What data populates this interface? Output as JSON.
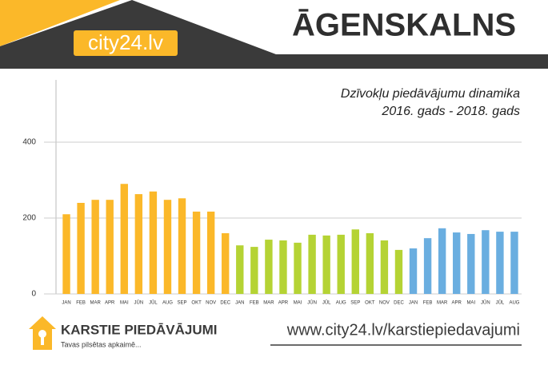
{
  "header": {
    "logo": "city24.lv",
    "title": "ĀGENSKALNS"
  },
  "chart_data": {
    "type": "bar",
    "title": "Dzīvokļu piedāvājumu dinamika",
    "subtitle": "2016. gads - 2018. gads",
    "categories": [
      "JAN",
      "FEB",
      "MAR",
      "APR",
      "MAI",
      "JŪN",
      "JŪL",
      "AUG",
      "SEP",
      "OKT",
      "NOV",
      "DEC",
      "JAN",
      "FEB",
      "MAR",
      "APR",
      "MAI",
      "JŪN",
      "JŪL",
      "AUG",
      "SEP",
      "OKT",
      "NOV",
      "DEC",
      "JAN",
      "FEB",
      "MAR",
      "APR",
      "MAI",
      "JŪN",
      "JŪL",
      "AUG"
    ],
    "values": [
      210,
      240,
      248,
      248,
      290,
      263,
      270,
      248,
      252,
      217,
      217,
      160,
      128,
      124,
      143,
      141,
      135,
      156,
      154,
      156,
      170,
      160,
      141,
      116,
      120,
      147,
      173,
      162,
      158,
      168,
      164,
      164
    ],
    "colors": [
      "#fbb829",
      "#fbb829",
      "#fbb829",
      "#fbb829",
      "#fbb829",
      "#fbb829",
      "#fbb829",
      "#fbb829",
      "#fbb829",
      "#fbb829",
      "#fbb829",
      "#fbb829",
      "#b5d334",
      "#b5d334",
      "#b5d334",
      "#b5d334",
      "#b5d334",
      "#b5d334",
      "#b5d334",
      "#b5d334",
      "#b5d334",
      "#b5d334",
      "#b5d334",
      "#b5d334",
      "#6aaee0",
      "#6aaee0",
      "#6aaee0",
      "#6aaee0",
      "#6aaee0",
      "#6aaee0",
      "#6aaee0",
      "#6aaee0"
    ],
    "ylim": [
      0,
      560
    ],
    "yticks": [
      0,
      200,
      400
    ],
    "grid": true
  },
  "footer": {
    "brand": "KARSTIE PIEDĀVĀJUMI",
    "tagline": "Tavas pilsētas apkaimē...",
    "url": "www.city24.lv/karstiepiedavajumi"
  }
}
